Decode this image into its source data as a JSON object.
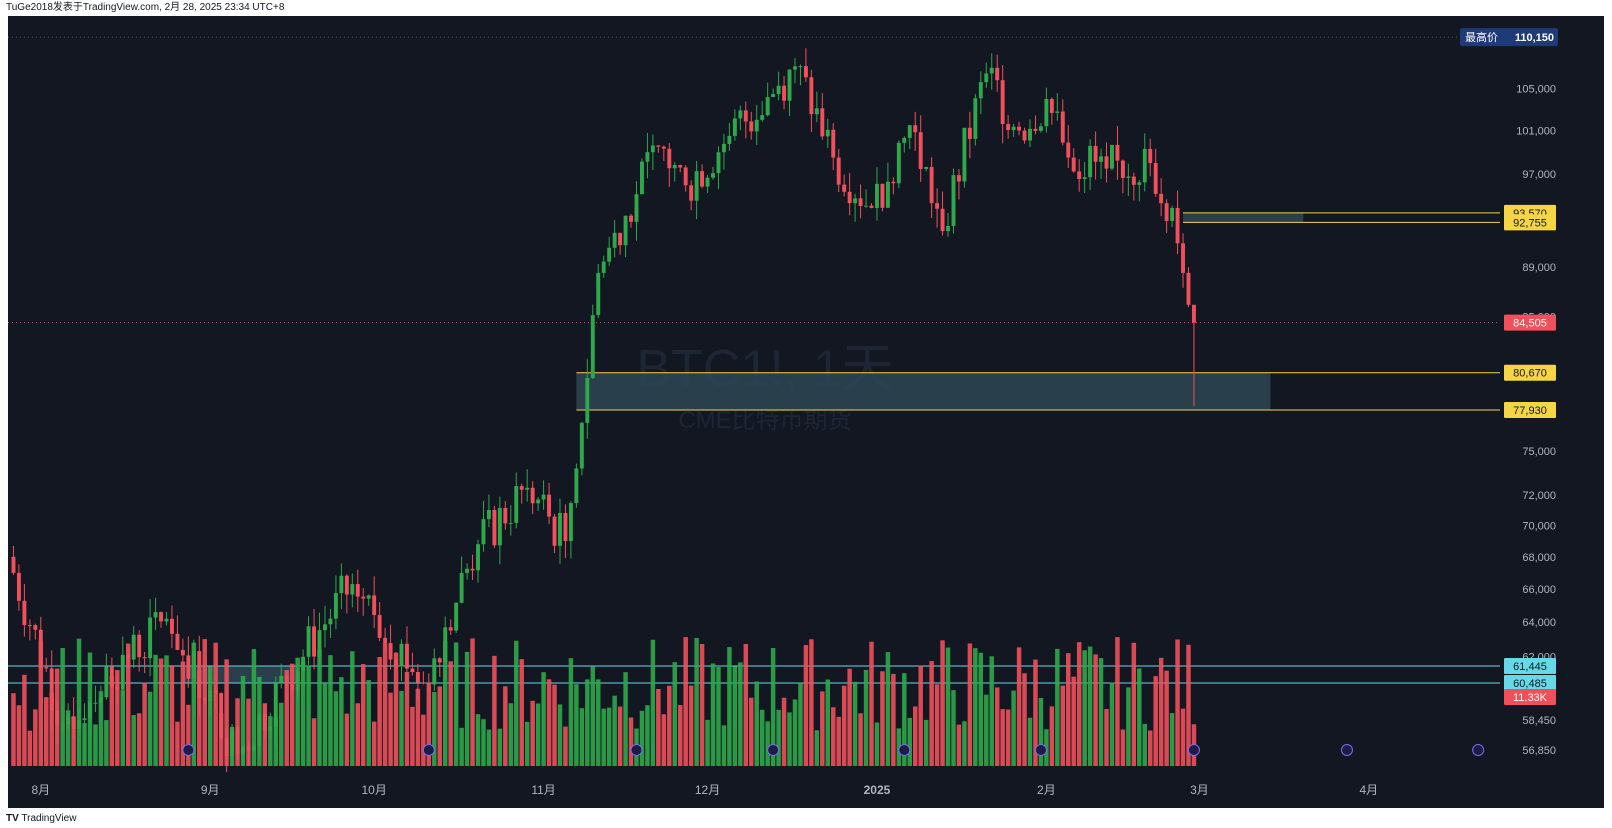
{
  "header": {
    "caption": "TuGe2018发表于TradingView.com, 2月 28, 2025 23:34 UTC+8"
  },
  "footer": {
    "brand": "TradingView"
  },
  "watermark": {
    "symbol": "BTC1!, 1天",
    "name": "CME比特币期货"
  },
  "colors": {
    "background": "#131722",
    "up": "#2ea84a",
    "down": "#f0505b",
    "zone": "#2f4654",
    "level_line": "#f5d544",
    "cyan_line": "#66d9e8"
  },
  "chart_data": {
    "type": "candlestick",
    "symbol": "BTC1!",
    "interval": "1天",
    "y_scale": "log",
    "y_range": [
      56000,
      111500
    ],
    "y_ticks": [
      105000,
      101000,
      97000,
      93000,
      89000,
      85000,
      81000,
      75000,
      72000,
      70000,
      68000,
      66000,
      64000,
      62000,
      58450,
      56850
    ],
    "y_tick_labels": [
      "105,000",
      "101,000",
      "97,000",
      "93,000",
      "89,000",
      "85,000",
      "81,000",
      "75,000",
      "72,000",
      "70,000",
      "68,000",
      "66,000",
      "64,000",
      "62,000",
      "58,450",
      "56,850"
    ],
    "x_labels": [
      {
        "label": "8月",
        "date": "2024-08-01"
      },
      {
        "label": "9月",
        "date": "2024-09-01"
      },
      {
        "label": "10月",
        "date": "2024-10-01"
      },
      {
        "label": "11月",
        "date": "2024-11-01"
      },
      {
        "label": "12月",
        "date": "2024-12-01"
      },
      {
        "label": "2025",
        "date": "2025-01-01"
      },
      {
        "label": "2月",
        "date": "2025-02-01"
      },
      {
        "label": "3月",
        "date": "2025-03-01"
      },
      {
        "label": "4月",
        "date": "2025-04-01"
      }
    ],
    "x_range": [
      "2024-07-26",
      "2025-04-25"
    ],
    "price_tags": [
      {
        "label": "最高价",
        "value": 110150,
        "text": "110,150",
        "style": "high"
      },
      {
        "value": 93570,
        "text": "93,570",
        "style": "level"
      },
      {
        "value": 92755,
        "text": "92,755",
        "style": "level"
      },
      {
        "value": 84505,
        "text": "84,505",
        "style": "last"
      },
      {
        "value": 80670,
        "text": "80,670",
        "style": "level"
      },
      {
        "value": 77930,
        "text": "77,930",
        "style": "level"
      },
      {
        "value": 61445,
        "text": "61,445",
        "style": "cyan"
      },
      {
        "value": 60485,
        "text": "60,485",
        "style": "cyan"
      }
    ],
    "volume_tag": "11.33K",
    "zones": [
      {
        "from": "2025-02-26",
        "to": "2025-03-20",
        "low": 92755,
        "high": 93570
      },
      {
        "from": "2024-11-07",
        "to": "2025-03-14",
        "low": 77930,
        "high": 80670
      },
      {
        "from": "2024-08-27",
        "to": "2024-09-17",
        "low": 60485,
        "high": 61445
      }
    ],
    "anchor_points": [
      {
        "date": "2024-07-26",
        "close": 68000
      },
      {
        "date": "2024-08-05",
        "close": 58200
      },
      {
        "date": "2024-08-24",
        "close": 64200
      },
      {
        "date": "2024-09-06",
        "close": 56600
      },
      {
        "date": "2024-09-27",
        "close": 66300
      },
      {
        "date": "2024-10-10",
        "close": 60500
      },
      {
        "date": "2024-10-20",
        "close": 68800
      },
      {
        "date": "2024-10-29",
        "close": 72500
      },
      {
        "date": "2024-11-05",
        "close": 69000
      },
      {
        "date": "2024-11-08",
        "close": 77000
      },
      {
        "date": "2024-11-11",
        "close": 88500
      },
      {
        "date": "2024-11-22",
        "close": 99500
      },
      {
        "date": "2024-11-27",
        "close": 96000
      },
      {
        "date": "2024-12-05",
        "close": 100500
      },
      {
        "date": "2024-12-17",
        "close": 107200
      },
      {
        "date": "2024-12-24",
        "close": 98500
      },
      {
        "date": "2024-12-31",
        "close": 94000
      },
      {
        "date": "2025-01-07",
        "close": 101500
      },
      {
        "date": "2025-01-13",
        "close": 92000
      },
      {
        "date": "2025-01-21",
        "close": 106500
      },
      {
        "date": "2025-01-27",
        "close": 101000
      },
      {
        "date": "2025-02-01",
        "close": 104000
      },
      {
        "date": "2025-02-05",
        "close": 98500
      },
      {
        "date": "2025-02-12",
        "close": 97500
      },
      {
        "date": "2025-02-20",
        "close": 98000
      },
      {
        "date": "2025-02-24",
        "close": 94000
      },
      {
        "date": "2025-02-26",
        "close": 88500
      },
      {
        "date": "2025-02-28",
        "close": 84505
      }
    ]
  }
}
